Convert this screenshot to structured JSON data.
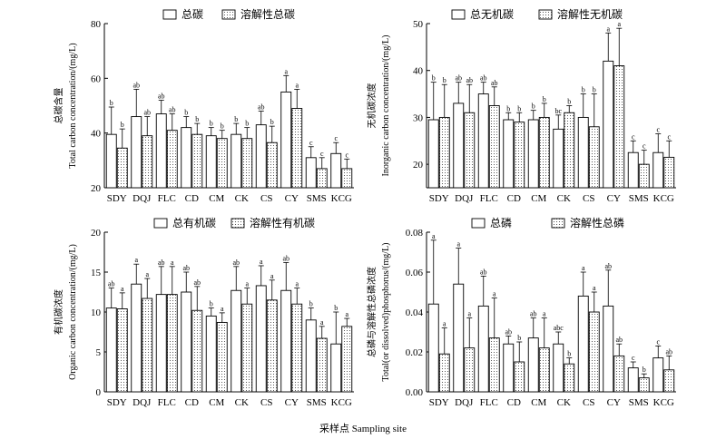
{
  "figure": {
    "xlabel": "采样点 Sampling site"
  },
  "colors": {
    "axis": "#000000",
    "bar_total_fill": "#ffffff",
    "bar_dissolved_pattern": "dots"
  },
  "chart_data": [
    {
      "id": "total-carbon",
      "type": "bar",
      "ylabel_cn": "总碳含量",
      "ylabel_en": "Total carbon concentration/(mg/L)",
      "ylim": [
        20,
        80
      ],
      "yticks": [
        20,
        40,
        60,
        80
      ],
      "ytick_labels": [
        "20",
        "40",
        "60",
        "80"
      ],
      "categories": [
        "SDY",
        "DQJ",
        "FLC",
        "CD",
        "CM",
        "CK",
        "CS",
        "CY",
        "SMS",
        "KCG"
      ],
      "series": [
        {
          "name": "总碳",
          "pattern": "plain",
          "values": [
            39.5,
            46,
            47,
            42,
            39,
            39.5,
            43,
            55,
            31,
            32.5
          ],
          "errors": [
            10,
            10,
            5,
            4,
            3,
            4,
            5,
            6,
            4,
            4
          ],
          "labels": [
            "b",
            "ab",
            "ab",
            "b",
            "b",
            "b",
            "ab",
            "a",
            "c",
            "c"
          ]
        },
        {
          "name": "溶解性总碳",
          "pattern": "dots",
          "values": [
            34.5,
            39,
            41,
            39.5,
            38,
            38,
            36.5,
            49,
            27,
            27
          ],
          "errors": [
            7,
            7,
            6,
            4,
            3,
            4,
            6,
            7,
            4,
            3.5
          ],
          "labels": [
            "b",
            "ab",
            "ab",
            "b",
            "b",
            "b",
            "b",
            "a",
            "c",
            "c"
          ]
        }
      ]
    },
    {
      "id": "inorganic-carbon",
      "type": "bar",
      "ylabel_cn": "无机碳浓度",
      "ylabel_en": "Inorganic carbon concentration/(mg/L)",
      "ylim": [
        15,
        50
      ],
      "yticks": [
        20,
        30,
        40,
        50
      ],
      "ytick_labels": [
        "20",
        "30",
        "40",
        "50"
      ],
      "categories": [
        "SDY",
        "DQJ",
        "FLC",
        "CD",
        "CM",
        "CK",
        "CS",
        "CY",
        "SMS",
        "KCG"
      ],
      "series": [
        {
          "name": "总无机碳",
          "pattern": "plain",
          "values": [
            29.5,
            33,
            35,
            29.5,
            29.5,
            27.5,
            30,
            42,
            22.5,
            22.5
          ],
          "errors": [
            8,
            4.5,
            2.5,
            1.5,
            2,
            3,
            5,
            6,
            2.5,
            4
          ],
          "labels": [
            "b",
            "ab",
            "ab",
            "b",
            "b",
            "bc",
            "b",
            "a",
            "c",
            "c"
          ]
        },
        {
          "name": "溶解性无机碳",
          "pattern": "dots",
          "values": [
            30,
            31,
            32.5,
            29,
            30,
            31,
            28,
            41,
            20,
            21.5
          ],
          "errors": [
            7,
            6,
            4,
            2,
            3,
            1.5,
            7,
            8,
            3,
            3.5
          ],
          "labels": [
            "b",
            "ab",
            "ab",
            "b",
            "b",
            "b",
            "b",
            "a",
            "c",
            "c"
          ]
        }
      ]
    },
    {
      "id": "organic-carbon",
      "type": "bar",
      "ylabel_cn": "有机碳浓度",
      "ylabel_en": "Organic carbon concentration/(mg/L)",
      "ylim": [
        0,
        20
      ],
      "yticks": [
        0,
        5,
        10,
        15,
        20
      ],
      "ytick_labels": [
        "0",
        "5",
        "10",
        "15",
        "20"
      ],
      "categories": [
        "SDY",
        "DQJ",
        "FLC",
        "CD",
        "CM",
        "CK",
        "CS",
        "CY",
        "SMS",
        "KCG"
      ],
      "series": [
        {
          "name": "总有机碳",
          "pattern": "plain",
          "values": [
            10.5,
            13.5,
            12.2,
            12.5,
            9.5,
            12.7,
            13.3,
            12.7,
            9,
            6
          ],
          "errors": [
            2.5,
            2.5,
            3.5,
            2.5,
            1,
            3,
            2.5,
            3.5,
            1.5,
            4
          ],
          "labels": [
            "ab",
            "a",
            "ab",
            "ab",
            "b",
            "ab",
            "a",
            "ab",
            "b",
            "b"
          ]
        },
        {
          "name": "溶解性有机碳",
          "pattern": "dots",
          "values": [
            10.4,
            11.7,
            12.2,
            10.2,
            8.7,
            11,
            11.5,
            11,
            6.7,
            8.2
          ],
          "errors": [
            2,
            2.5,
            3.5,
            3,
            1.2,
            2,
            2.5,
            2,
            1.5,
            1
          ],
          "labels": [
            "a",
            "a",
            "a",
            "ab",
            "a",
            "a",
            "a",
            "a",
            "a",
            "a"
          ]
        }
      ]
    },
    {
      "id": "phosphorus",
      "type": "bar",
      "ylabel_cn": "总磷与溶解性总磷浓度",
      "ylabel_en": "Total(or dissolved)phosphorus/(mg/L)",
      "ylim": [
        0,
        0.08
      ],
      "yticks": [
        0,
        0.02,
        0.04,
        0.06,
        0.08
      ],
      "ytick_labels": [
        "0.00",
        "0.02",
        "0.04",
        "0.06",
        "0.08"
      ],
      "categories": [
        "SDY",
        "DQJ",
        "FLC",
        "CD",
        "CM",
        "CK",
        "CS",
        "CY",
        "SMS",
        "KCG"
      ],
      "series": [
        {
          "name": "总磷",
          "pattern": "plain",
          "values": [
            0.044,
            0.054,
            0.043,
            0.024,
            0.027,
            0.024,
            0.048,
            0.043,
            0.012,
            0.017
          ],
          "errors": [
            0.032,
            0.018,
            0.015,
            0.004,
            0.01,
            0.006,
            0.012,
            0.018,
            0.003,
            0.006
          ],
          "labels": [
            "a",
            "a",
            "ab",
            "ab",
            "ab",
            "abc",
            "a",
            "ab",
            "c",
            "c"
          ]
        },
        {
          "name": "溶解性总磷",
          "pattern": "dots",
          "values": [
            0.019,
            0.022,
            0.027,
            0.015,
            0.022,
            0.014,
            0.04,
            0.018,
            0.007,
            0.011
          ],
          "errors": [
            0.013,
            0.015,
            0.02,
            0.01,
            0.015,
            0.003,
            0.01,
            0.006,
            0.002,
            0.007
          ],
          "labels": [
            "a",
            "a",
            "a",
            "b",
            "a",
            "b",
            "a",
            "ab",
            "b",
            "ab"
          ]
        }
      ]
    }
  ]
}
